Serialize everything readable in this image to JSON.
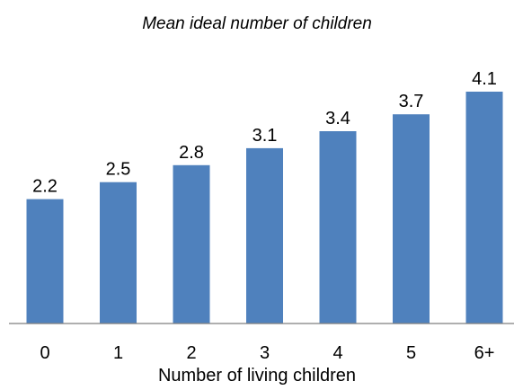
{
  "chart_data": {
    "type": "bar",
    "title": "Mean ideal number of children",
    "xlabel": "Number of living children",
    "ylabel": "",
    "categories": [
      "0",
      "1",
      "2",
      "3",
      "4",
      "5",
      "6+"
    ],
    "values": [
      2.2,
      2.5,
      2.8,
      3.1,
      3.4,
      3.7,
      4.1
    ],
    "data_labels": [
      "2.2",
      "2.5",
      "2.8",
      "3.1",
      "3.4",
      "3.7",
      "4.1"
    ],
    "ylim": [
      0,
      4.1
    ],
    "grid": false,
    "legend": "none",
    "bar_color": "#4f81bd"
  }
}
